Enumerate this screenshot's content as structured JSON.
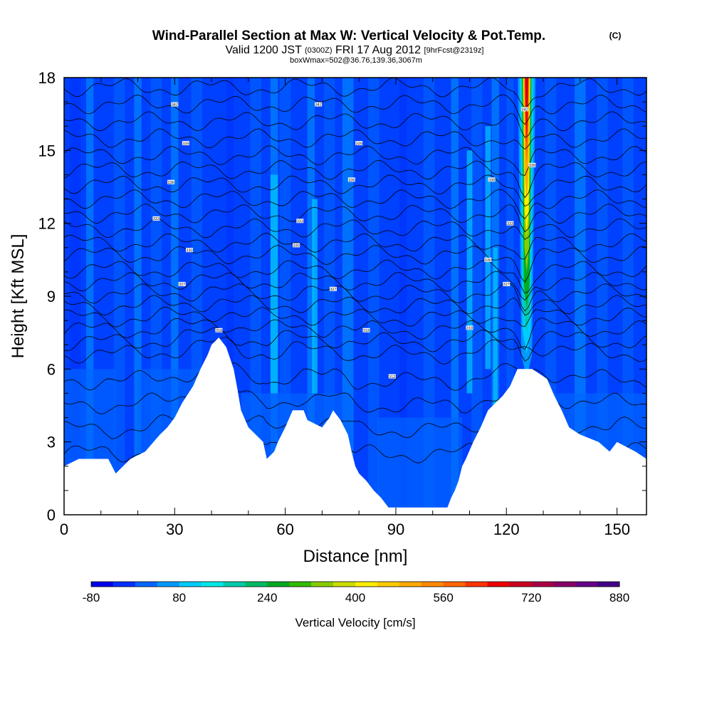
{
  "header": {
    "title_main": "Wind-Parallel Section at Max W: Vertical Velocity & Pot.Temp.",
    "title_copyright": "(C)",
    "valid_prefix": "Valid 1200 JST",
    "valid_zulu": "(0300Z)",
    "valid_date": "FRI 17 Aug 2012",
    "forecast_info": "[9hrFcst@2319z]",
    "box_info": "boxWmax=502@36.76,139.36,3067m"
  },
  "chart_data": {
    "type": "heatmap",
    "title": "Wind-Parallel Section at Max W: Vertical Velocity & Pot.Temp.",
    "xlabel": "Distance [nm]",
    "ylabel": "Height [Kft MSL]",
    "xlim": [
      0,
      158
    ],
    "ylim": [
      0,
      18
    ],
    "x_ticks": [
      0,
      30,
      60,
      90,
      120,
      150
    ],
    "y_ticks": [
      0,
      3,
      6,
      9,
      12,
      15,
      18
    ],
    "colorbar": {
      "label": "Vertical Velocity [cm/s]",
      "min": -80,
      "max": 1040,
      "step": 40,
      "tick_values": [
        -80,
        80,
        240,
        400,
        560,
        720,
        880
      ],
      "tick_labels": [
        "-80",
        "80",
        "240",
        "400",
        "560",
        "720",
        "880"
      ],
      "colors": [
        "#0000ee",
        "#0030ff",
        "#0066ff",
        "#0099ff",
        "#00ccff",
        "#00e8e8",
        "#00ccaa",
        "#00bb66",
        "#00aa22",
        "#33bb00",
        "#88cc00",
        "#ccdd00",
        "#ffee00",
        "#ffcc00",
        "#ffaa00",
        "#ff8800",
        "#ff6600",
        "#ff3300",
        "#ee0000",
        "#cc0022",
        "#aa0044",
        "#880066",
        "#660088",
        "#440088"
      ]
    },
    "terrain_kft": [
      [
        0,
        2.0
      ],
      [
        4,
        2.3
      ],
      [
        12,
        2.3
      ],
      [
        14,
        1.7
      ],
      [
        18,
        2.3
      ],
      [
        22,
        2.6
      ],
      [
        26,
        3.3
      ],
      [
        28,
        3.6
      ],
      [
        30,
        4.0
      ],
      [
        32,
        4.6
      ],
      [
        35,
        5.3
      ],
      [
        37,
        6.0
      ],
      [
        39,
        6.6
      ],
      [
        40,
        7.0
      ],
      [
        42,
        7.3
      ],
      [
        44,
        6.9
      ],
      [
        46,
        6.0
      ],
      [
        47,
        5.2
      ],
      [
        48,
        4.3
      ],
      [
        50,
        3.6
      ],
      [
        52,
        3.3
      ],
      [
        54,
        3.0
      ],
      [
        55,
        2.3
      ],
      [
        57,
        2.6
      ],
      [
        58,
        3.0
      ],
      [
        60,
        3.6
      ],
      [
        62,
        4.3
      ],
      [
        65,
        4.3
      ],
      [
        66,
        3.9
      ],
      [
        70,
        3.6
      ],
      [
        72,
        4.0
      ],
      [
        73,
        4.3
      ],
      [
        75,
        3.9
      ],
      [
        77,
        3.3
      ],
      [
        78,
        2.6
      ],
      [
        79,
        2.0
      ],
      [
        80,
        1.7
      ],
      [
        82,
        1.4
      ],
      [
        84,
        1.0
      ],
      [
        86,
        0.7
      ],
      [
        88,
        0.3
      ],
      [
        104,
        0.3
      ],
      [
        105,
        0.7
      ],
      [
        106,
        1.0
      ],
      [
        107,
        1.4
      ],
      [
        108,
        2.0
      ],
      [
        109,
        2.3
      ],
      [
        111,
        3.0
      ],
      [
        113,
        3.6
      ],
      [
        115,
        4.3
      ],
      [
        117,
        4.6
      ],
      [
        119,
        4.9
      ],
      [
        121,
        5.3
      ],
      [
        123,
        6.0
      ],
      [
        124,
        6.0
      ],
      [
        127,
        6.0
      ],
      [
        131,
        5.6
      ],
      [
        133,
        4.9
      ],
      [
        135,
        4.3
      ],
      [
        137,
        3.6
      ],
      [
        140,
        3.3
      ],
      [
        145,
        3.0
      ],
      [
        148,
        2.6
      ],
      [
        150,
        3.0
      ],
      [
        155,
        2.6
      ],
      [
        158,
        2.3
      ]
    ],
    "updraft": {
      "x_center_nm": 125.5,
      "max_cm_s": 1000,
      "base_kft": 6.0,
      "top_kft": 18
    },
    "isentrope_heights_kft": [
      2.5,
      3.5,
      4.5,
      5.5,
      6.6,
      7.1,
      7.6,
      8.1,
      8.6,
      9.1,
      9.6,
      10.1,
      10.7,
      11.2,
      11.8,
      12.4,
      13.0,
      13.6,
      14.2,
      14.8,
      15.5,
      16.2,
      16.9,
      17.6
    ],
    "isentrope_labels": [
      {
        "x": 30,
        "y": 16.9,
        "text": "342"
      },
      {
        "x": 33,
        "y": 15.3,
        "text": "339"
      },
      {
        "x": 29,
        "y": 13.7,
        "text": "336"
      },
      {
        "x": 25,
        "y": 12.2,
        "text": "333"
      },
      {
        "x": 34,
        "y": 10.9,
        "text": "330"
      },
      {
        "x": 32,
        "y": 9.5,
        "text": "327"
      },
      {
        "x": 42,
        "y": 7.6,
        "text": "318"
      },
      {
        "x": 69,
        "y": 16.9,
        "text": "342"
      },
      {
        "x": 80,
        "y": 15.3,
        "text": "339"
      },
      {
        "x": 78,
        "y": 13.8,
        "text": "336"
      },
      {
        "x": 64,
        "y": 12.1,
        "text": "333"
      },
      {
        "x": 63,
        "y": 11.1,
        "text": "330"
      },
      {
        "x": 73,
        "y": 9.3,
        "text": "327"
      },
      {
        "x": 82,
        "y": 7.6,
        "text": "318"
      },
      {
        "x": 89,
        "y": 5.7,
        "text": "312"
      },
      {
        "x": 125,
        "y": 16.7,
        "text": "342"
      },
      {
        "x": 127,
        "y": 14.4,
        "text": "339"
      },
      {
        "x": 116,
        "y": 13.8,
        "text": "336"
      },
      {
        "x": 121,
        "y": 12.0,
        "text": "333"
      },
      {
        "x": 115,
        "y": 10.5,
        "text": "330"
      },
      {
        "x": 120,
        "y": 9.5,
        "text": "327"
      },
      {
        "x": 110,
        "y": 7.7,
        "text": "318"
      }
    ]
  }
}
